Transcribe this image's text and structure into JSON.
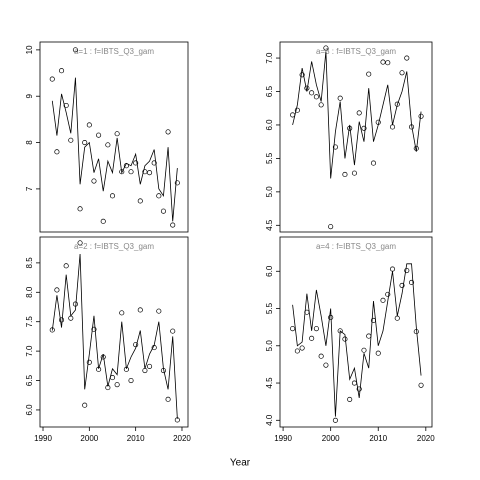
{
  "xlabel": "Year",
  "chart_data": [
    {
      "type": "scatter",
      "title": "a=1  :  f=IBTS_Q3_gam",
      "x": [
        1992,
        1993,
        1994,
        1995,
        1996,
        1997,
        1998,
        1999,
        2000,
        2001,
        2002,
        2003,
        2004,
        2005,
        2006,
        2007,
        2008,
        2009,
        2010,
        2011,
        2012,
        2013,
        2014,
        2015,
        2016,
        2017,
        2018,
        2019
      ],
      "series": [
        {
          "style": "points",
          "color": "#000000",
          "values": [
            9.37,
            7.8,
            9.55,
            8.8,
            8.05,
            10.0,
            6.57,
            8.0,
            8.38,
            7.17,
            8.16,
            6.3,
            7.95,
            6.85,
            8.19,
            7.37,
            7.5,
            7.37,
            7.56,
            6.74,
            7.37,
            7.35,
            7.56,
            6.85,
            6.52,
            8.23,
            6.22,
            7.13
          ]
        },
        {
          "style": "line",
          "color": "#000000",
          "values": [
            8.9,
            8.15,
            9.05,
            8.65,
            8.2,
            9.4,
            7.1,
            7.9,
            8.0,
            7.35,
            7.65,
            6.95,
            7.6,
            7.35,
            8.1,
            7.35,
            7.55,
            7.5,
            7.75,
            7.1,
            7.5,
            7.6,
            7.85,
            7.0,
            6.85,
            7.9,
            6.3,
            7.45
          ]
        }
      ],
      "xlim": [
        1989.35,
        2021.3
      ],
      "ylim": [
        6.07,
        10.17
      ],
      "yticks": [
        7,
        8,
        9,
        10
      ]
    },
    {
      "type": "scatter",
      "title": "a=3  :  f=IBTS_Q3_gam",
      "x": [
        1992,
        1993,
        1994,
        1995,
        1996,
        1997,
        1998,
        1999,
        2000,
        2001,
        2002,
        2003,
        2004,
        2005,
        2006,
        2007,
        2008,
        2009,
        2010,
        2011,
        2012,
        2013,
        2014,
        2015,
        2016,
        2017,
        2018,
        2019
      ],
      "series": [
        {
          "style": "points",
          "color": "#000000",
          "values": [
            6.15,
            6.22,
            6.75,
            6.55,
            6.48,
            6.42,
            6.3,
            7.15,
            4.48,
            5.67,
            6.4,
            5.26,
            5.95,
            5.28,
            6.18,
            5.95,
            6.76,
            5.43,
            6.04,
            6.94,
            6.93,
            5.97,
            6.31,
            6.78,
            7.0,
            5.97,
            5.65,
            6.13
          ]
        },
        {
          "style": "line",
          "color": "#000000",
          "values": [
            6.0,
            6.3,
            6.85,
            6.5,
            6.95,
            6.6,
            6.35,
            7.1,
            5.2,
            5.9,
            6.35,
            5.5,
            6.0,
            5.4,
            6.05,
            5.75,
            6.55,
            5.75,
            6.0,
            6.3,
            6.6,
            6.0,
            6.3,
            6.5,
            6.8,
            6.0,
            5.6,
            6.2
          ]
        }
      ],
      "xlim": [
        1989.35,
        2021.3
      ],
      "ylim": [
        4.4,
        7.24
      ],
      "yticks": [
        4.5,
        {
          "value": 5,
          "label": "5.0"
        },
        5.5,
        {
          "value": 6,
          "label": "6.0"
        },
        6.5,
        {
          "value": 7,
          "label": "7.0"
        }
      ]
    },
    {
      "type": "scatter",
      "title": "a=2  :  f=IBTS_Q3_gam",
      "x": [
        1992,
        1993,
        1994,
        1995,
        1996,
        1997,
        1998,
        1999,
        2000,
        2001,
        2002,
        2003,
        2004,
        2005,
        2006,
        2007,
        2008,
        2009,
        2010,
        2011,
        2012,
        2013,
        2014,
        2015,
        2016,
        2017,
        2018,
        2019
      ],
      "series": [
        {
          "style": "points",
          "color": "#000000",
          "values": [
            7.36,
            8.04,
            7.53,
            8.45,
            7.56,
            7.8,
            8.84,
            6.08,
            6.81,
            7.37,
            6.69,
            6.9,
            6.38,
            6.55,
            6.43,
            7.65,
            6.69,
            6.5,
            7.11,
            7.7,
            6.67,
            6.74,
            7.06,
            7.68,
            6.67,
            6.18,
            7.34,
            5.83
          ]
        },
        {
          "style": "line",
          "color": "#000000",
          "values": [
            7.35,
            7.95,
            7.4,
            8.3,
            7.6,
            7.7,
            8.65,
            6.35,
            6.95,
            7.6,
            6.7,
            6.95,
            6.4,
            6.7,
            6.6,
            7.5,
            6.7,
            6.9,
            7.05,
            7.35,
            6.7,
            6.95,
            7.1,
            7.5,
            6.7,
            6.35,
            7.25,
            5.85
          ]
        }
      ],
      "xlim": [
        1989.35,
        2021.3
      ],
      "ylim": [
        5.71,
        8.94
      ],
      "xticks": [
        1990,
        2000,
        2010,
        2020
      ],
      "yticks": [
        {
          "value": 6,
          "label": "6.0"
        },
        6.5,
        {
          "value": 7,
          "label": "7.0"
        },
        7.5,
        {
          "value": 8,
          "label": "8.0"
        },
        8.5
      ]
    },
    {
      "type": "scatter",
      "title": "a=4  :  f=IBTS_Q3_gam",
      "x": [
        1992,
        1993,
        1994,
        1995,
        1996,
        1997,
        1998,
        1999,
        2000,
        2001,
        2002,
        2003,
        2004,
        2005,
        2006,
        2007,
        2008,
        2009,
        2010,
        2011,
        2012,
        2013,
        2014,
        2015,
        2016,
        2017,
        2018,
        2019
      ],
      "series": [
        {
          "style": "points",
          "color": "#000000",
          "values": [
            5.23,
            4.93,
            4.97,
            5.45,
            5.1,
            5.23,
            4.86,
            4.74,
            5.38,
            4.0,
            5.2,
            5.09,
            4.28,
            4.5,
            4.42,
            4.94,
            5.13,
            5.34,
            4.9,
            5.61,
            5.69,
            6.03,
            5.37,
            5.81,
            6.01,
            5.85,
            5.19,
            4.47
          ]
        },
        {
          "style": "line",
          "color": "#000000",
          "values": [
            5.55,
            5.0,
            5.05,
            5.7,
            5.2,
            5.75,
            5.4,
            5.0,
            5.5,
            4.05,
            5.2,
            5.15,
            4.55,
            4.7,
            4.3,
            4.9,
            4.7,
            5.6,
            5.0,
            5.2,
            5.6,
            6.0,
            5.4,
            5.7,
            6.1,
            6.1,
            5.25,
            4.6
          ]
        }
      ],
      "xlim": [
        1989.35,
        2021.3
      ],
      "ylim": [
        3.91,
        6.46
      ],
      "xticks": [
        1990,
        2000,
        2010,
        2020
      ],
      "yticks": [
        {
          "value": 4,
          "label": "4.0"
        },
        4.5,
        {
          "value": 5,
          "label": "5.0"
        },
        5.5,
        {
          "value": 6,
          "label": "6.0"
        }
      ]
    }
  ]
}
